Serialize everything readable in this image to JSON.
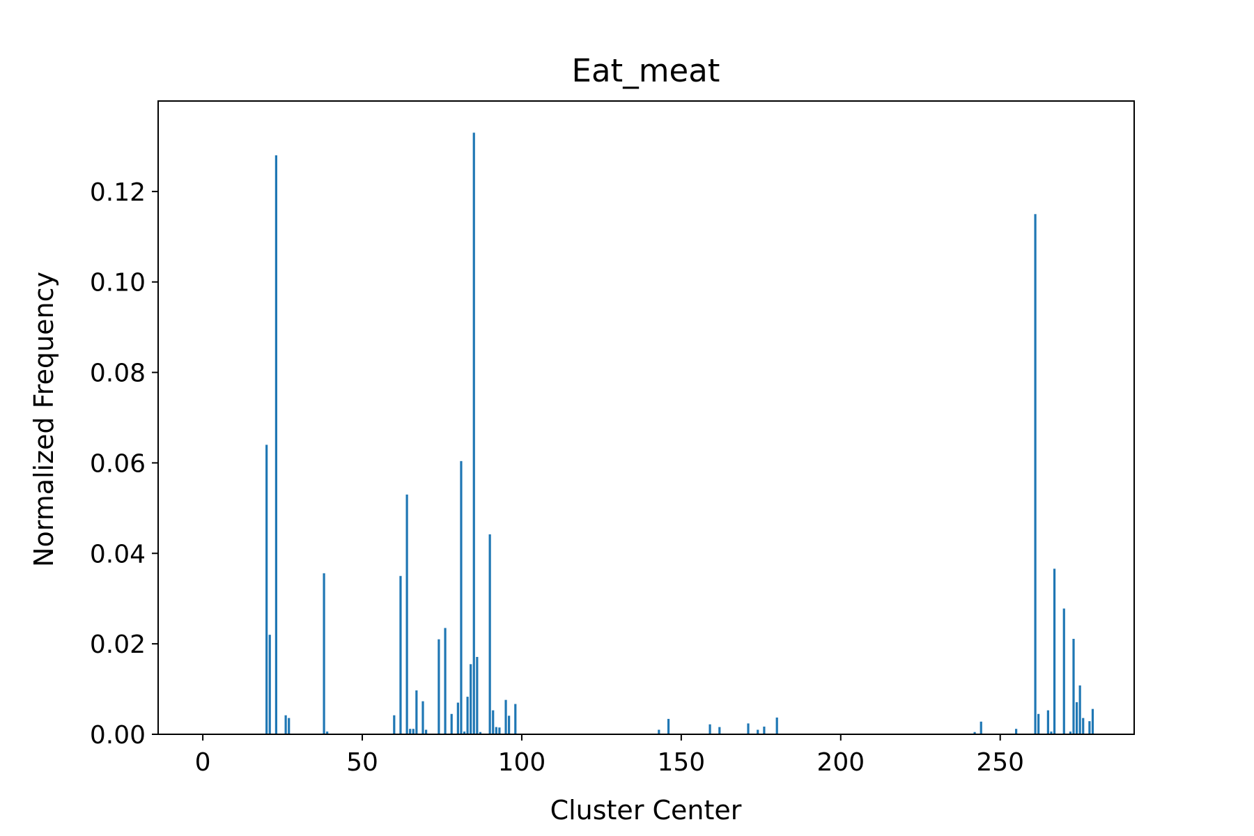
{
  "chart_data": {
    "type": "bar",
    "title": "Eat_meat",
    "xlabel": "Cluster Center",
    "ylabel": "Normalized Frequency",
    "xlim": [
      -14,
      292
    ],
    "ylim": [
      0,
      0.14
    ],
    "xticks": [
      0,
      50,
      100,
      150,
      200,
      250
    ],
    "xtick_labels": [
      "0",
      "50",
      "100",
      "150",
      "200",
      "250"
    ],
    "yticks": [
      0,
      0.02,
      0.04,
      0.06,
      0.08,
      0.1,
      0.12
    ],
    "ytick_labels": [
      "0.00",
      "0.02",
      "0.04",
      "0.06",
      "0.08",
      "0.10",
      "0.12"
    ],
    "grid": false,
    "bar_color": "#1f77b4",
    "x": [
      20,
      21,
      23,
      26,
      27,
      38,
      39,
      60,
      62,
      64,
      65,
      66,
      67,
      69,
      70,
      74,
      76,
      78,
      80,
      81,
      82,
      83,
      84,
      85,
      86,
      87,
      90,
      91,
      92,
      93,
      95,
      96,
      98,
      143,
      146,
      159,
      162,
      171,
      174,
      176,
      180,
      242,
      244,
      255,
      261,
      262,
      265,
      266,
      267,
      270,
      272,
      273,
      274,
      275,
      276,
      278,
      279
    ],
    "values": [
      0.064,
      0.022,
      0.128,
      0.0042,
      0.0036,
      0.0356,
      0.0006,
      0.0042,
      0.035,
      0.053,
      0.0012,
      0.0012,
      0.0097,
      0.0073,
      0.001,
      0.021,
      0.0235,
      0.0045,
      0.007,
      0.0604,
      0.0006,
      0.0083,
      0.0155,
      0.133,
      0.0171,
      0.0005,
      0.0442,
      0.0053,
      0.0016,
      0.0015,
      0.0076,
      0.0041,
      0.0067,
      0.001,
      0.0034,
      0.0022,
      0.0016,
      0.0024,
      0.001,
      0.0017,
      0.0037,
      0.0005,
      0.0028,
      0.0012,
      0.115,
      0.0045,
      0.0053,
      0.0006,
      0.0366,
      0.0278,
      0.0006,
      0.0211,
      0.0071,
      0.0108,
      0.0036,
      0.0029,
      0.0056
    ]
  }
}
